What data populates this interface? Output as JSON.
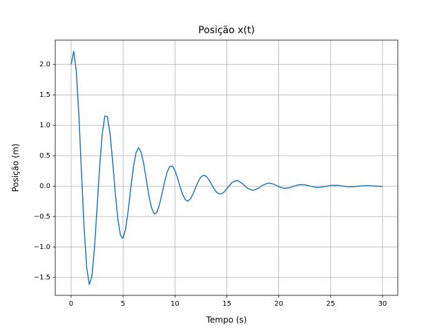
{
  "chart_data": {
    "type": "line",
    "title": "Posição x(t)",
    "xlabel": "Tempo (s)",
    "ylabel": "Posição (m)",
    "color": "#1f77b4",
    "grid": true,
    "xlim": [
      -1.53,
      31.47
    ],
    "ylim": [
      -1.795,
      2.4
    ],
    "xticks": [
      0,
      5,
      10,
      15,
      20,
      25,
      30
    ],
    "yticks": [
      {
        "value": -1.5,
        "label": "−1.5"
      },
      {
        "value": -1.0,
        "label": "−1.0"
      },
      {
        "value": -0.5,
        "label": "−0.5"
      },
      {
        "value": 0,
        "label": "0.0"
      },
      0.5,
      {
        "value": 1.0,
        "label": "1.0"
      },
      1.5,
      {
        "value": 2.0,
        "label": "2.0"
      }
    ],
    "x": [
      0,
      0.25,
      0.5,
      0.75,
      1,
      1.25,
      1.5,
      1.75,
      2,
      2.25,
      2.5,
      2.75,
      3,
      3.25,
      3.5,
      3.75,
      4,
      4.25,
      4.5,
      4.75,
      5,
      5.25,
      5.5,
      5.75,
      6,
      6.25,
      6.5,
      6.75,
      7,
      7.25,
      7.5,
      7.75,
      8,
      8.25,
      8.5,
      8.75,
      9,
      9.25,
      9.5,
      9.75,
      10,
      10.25,
      10.5,
      10.75,
      11,
      11.25,
      11.5,
      11.75,
      12,
      12.25,
      12.5,
      12.75,
      13,
      13.25,
      13.5,
      13.75,
      14,
      14.25,
      14.5,
      14.75,
      15,
      15.5,
      16,
      16.5,
      17,
      17.5,
      18,
      18.5,
      19,
      19.5,
      20,
      20.5,
      21,
      21.5,
      22,
      22.5,
      23,
      23.5,
      24,
      24.5,
      25,
      25.5,
      26,
      26.5,
      27,
      27.5,
      28,
      28.5,
      29,
      29.5,
      30
    ],
    "values": [
      2.0,
      2.216,
      1.891,
      1.15,
      0.212,
      -0.688,
      -1.343,
      -1.618,
      -1.483,
      -1.013,
      -0.355,
      0.33,
      0.865,
      1.153,
      1.14,
      0.859,
      0.402,
      -0.106,
      -0.54,
      -0.805,
      -0.857,
      -0.703,
      -0.399,
      -0.026,
      0.315,
      0.55,
      0.633,
      0.557,
      0.36,
      0.096,
      -0.165,
      -0.361,
      -0.456,
      -0.434,
      -0.31,
      -0.127,
      0.07,
      0.231,
      0.323,
      0.329,
      0.258,
      0.134,
      -0.011,
      -0.139,
      -0.223,
      -0.245,
      -0.208,
      -0.127,
      -0.021,
      0.078,
      0.15,
      0.179,
      0.164,
      0.111,
      0.038,
      -0.038,
      -0.098,
      -0.128,
      -0.126,
      -0.094,
      -0.044,
      0.061,
      0.095,
      0.043,
      -0.036,
      -0.07,
      -0.039,
      0.019,
      0.051,
      0.034,
      -0.008,
      -0.036,
      -0.029,
      0.002,
      0.025,
      0.023,
      0.002,
      -0.017,
      -0.018,
      -0.004,
      0.011,
      0.014,
      0.005,
      -0.007,
      -0.01,
      -0.005,
      0.004,
      0.008,
      0.004,
      -0.002,
      -0.006
    ]
  }
}
